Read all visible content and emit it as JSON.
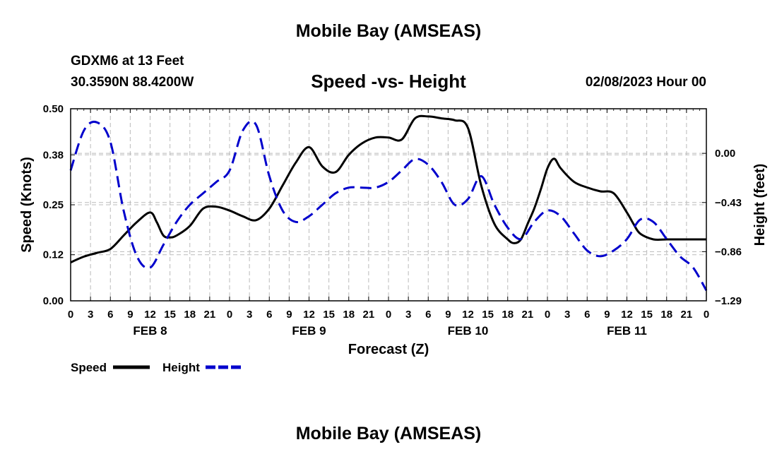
{
  "header": {
    "title": "Mobile Bay (AMSEAS)",
    "station": "GDXM6 at 13 Feet",
    "coords": "30.3590N  88.4200W",
    "chart_title": "Speed -vs- Height",
    "run_time": "02/08/2023 Hour 00"
  },
  "footer": {
    "title": "Mobile Bay (AMSEAS)"
  },
  "legend": {
    "speed_label": "Speed",
    "height_label": "Height"
  },
  "chart_data": {
    "type": "line",
    "title": "Speed -vs- Height",
    "xlabel": "Forecast (Z)",
    "ylabel": "Speed (Knots)",
    "y2label": "Height (feet)",
    "grid": true,
    "legend_position": "bottom-left",
    "x_range_hours": [
      0,
      96
    ],
    "x_tick_labels": [
      "0",
      "3",
      "6",
      "9",
      "12",
      "15",
      "18",
      "21",
      "0",
      "3",
      "6",
      "9",
      "12",
      "15",
      "18",
      "21",
      "0",
      "3",
      "6",
      "9",
      "12",
      "15",
      "18",
      "21",
      "0",
      "3",
      "6",
      "9",
      "12",
      "15",
      "18",
      "21",
      "0"
    ],
    "day_labels": [
      {
        "label": "FEB 8",
        "hour": 12
      },
      {
        "label": "FEB 9",
        "hour": 36
      },
      {
        "label": "FEB 10",
        "hour": 60
      },
      {
        "label": "FEB 11",
        "hour": 84
      }
    ],
    "y_left": {
      "ticks": [
        0.0,
        0.12,
        0.25,
        0.38,
        0.5
      ],
      "tick_labels": [
        "0.00",
        "0.12",
        "0.25",
        "0.38",
        "0.50"
      ],
      "range": [
        0,
        0.5
      ]
    },
    "y_right": {
      "ticks": [
        0.0,
        -0.43,
        -0.86,
        -1.29
      ],
      "tick_labels": [
        "0.00",
        "−0.43",
        "−0.86",
        "−1.29"
      ],
      "range": [
        -1.29,
        0.39
      ]
    },
    "series": [
      {
        "name": "Speed",
        "axis": "left",
        "color": "#000000",
        "dash": false,
        "x": [
          0,
          2,
          4,
          6,
          8,
          10,
          12,
          13,
          14,
          15,
          16,
          18,
          20,
          22,
          24,
          26,
          28,
          30,
          32,
          34,
          36,
          38,
          40,
          42,
          44,
          46,
          48,
          50,
          52,
          54,
          56,
          58,
          60,
          62,
          64,
          66,
          67,
          68,
          69,
          70,
          71,
          72,
          73,
          74,
          76,
          78,
          80,
          82,
          84,
          85,
          86,
          88,
          90,
          92,
          94,
          96
        ],
        "values": [
          0.1,
          0.115,
          0.125,
          0.135,
          0.17,
          0.205,
          0.23,
          0.205,
          0.17,
          0.165,
          0.17,
          0.195,
          0.24,
          0.245,
          0.235,
          0.22,
          0.21,
          0.24,
          0.3,
          0.36,
          0.4,
          0.35,
          0.335,
          0.38,
          0.41,
          0.425,
          0.425,
          0.42,
          0.475,
          0.48,
          0.475,
          0.47,
          0.45,
          0.3,
          0.2,
          0.16,
          0.15,
          0.16,
          0.2,
          0.24,
          0.29,
          0.345,
          0.37,
          0.345,
          0.31,
          0.295,
          0.285,
          0.28,
          0.23,
          0.2,
          0.175,
          0.16,
          0.16,
          0.16,
          0.16,
          0.16
        ]
      },
      {
        "name": "Height",
        "axis": "right",
        "color": "#0000cc",
        "dash": true,
        "x": [
          0,
          2,
          4,
          6,
          8,
          10,
          12,
          14,
          16,
          18,
          20,
          22,
          24,
          26,
          28,
          30,
          32,
          34,
          36,
          38,
          40,
          42,
          44,
          46,
          48,
          50,
          52,
          54,
          56,
          58,
          60,
          62,
          64,
          66,
          68,
          70,
          72,
          74,
          76,
          78,
          80,
          82,
          84,
          86,
          88,
          90,
          92,
          94,
          96
        ],
        "values": [
          -0.15,
          0.2,
          0.27,
          0.1,
          -0.5,
          -0.9,
          -1.0,
          -0.8,
          -0.6,
          -0.45,
          -0.35,
          -0.25,
          -0.15,
          0.2,
          0.25,
          -0.2,
          -0.5,
          -0.6,
          -0.55,
          -0.45,
          -0.35,
          -0.3,
          -0.3,
          -0.3,
          -0.25,
          -0.15,
          -0.05,
          -0.1,
          -0.25,
          -0.45,
          -0.4,
          -0.2,
          -0.45,
          -0.65,
          -0.75,
          -0.6,
          -0.5,
          -0.55,
          -0.7,
          -0.85,
          -0.9,
          -0.85,
          -0.75,
          -0.58,
          -0.6,
          -0.75,
          -0.9,
          -1.0,
          -1.2
        ]
      }
    ]
  }
}
